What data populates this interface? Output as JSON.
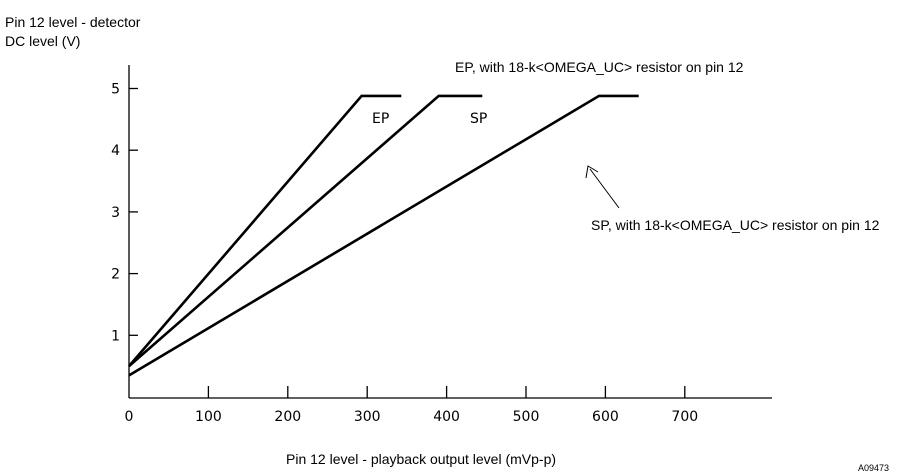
{
  "chart_data": {
    "type": "line",
    "title": "",
    "ylabel_line1": "Pin 12 level - detector",
    "ylabel_line2": "DC level (V)",
    "xlabel": "Pin 12 level - playback output level (mVp-p)",
    "figure_id": "A09473",
    "xlim": [
      0,
      750
    ],
    "ylim": [
      0,
      5.5
    ],
    "x_ticks": [
      0,
      100,
      200,
      300,
      400,
      500,
      600,
      700
    ],
    "y_ticks": [
      1,
      2,
      3,
      4,
      5
    ],
    "grid": false,
    "legend": "none",
    "series": [
      {
        "name": "EP",
        "points": [
          [
            0,
            0.5
          ],
          [
            293,
            4.88
          ],
          [
            343,
            4.88
          ]
        ]
      },
      {
        "name": "SP",
        "points": [
          [
            0,
            0.5
          ],
          [
            390,
            4.88
          ],
          [
            445,
            4.88
          ]
        ]
      },
      {
        "name": "EP, with 18-k<OMEGA_UC> resistor on pin 12",
        "points": [
          [
            0,
            0.35
          ],
          [
            592,
            4.88
          ],
          [
            642,
            4.88
          ]
        ]
      }
    ],
    "annotations": [
      {
        "text": "SP, with 18-k<OMEGA_UC> resistor on pin 12",
        "arrow_to": [
          572,
          4.2
        ]
      }
    ]
  }
}
